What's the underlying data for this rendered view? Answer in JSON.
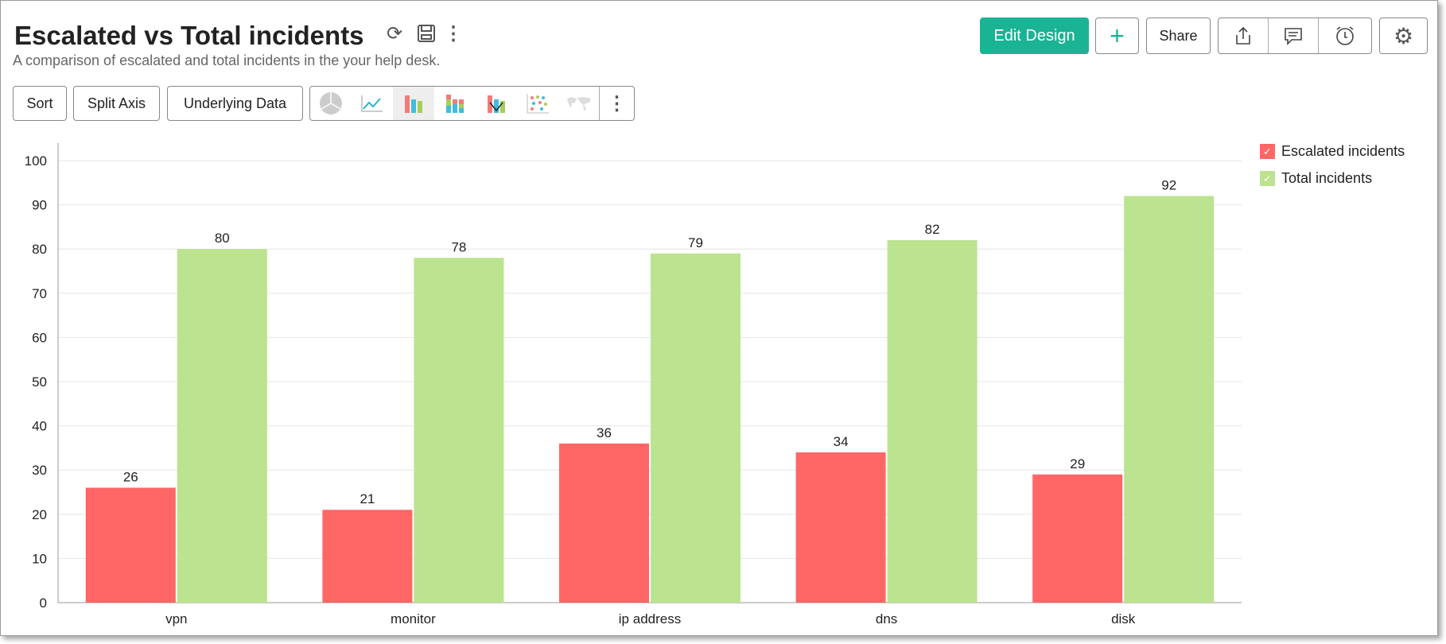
{
  "header": {
    "title": "Escalated vs Total incidents",
    "subtitle": "A comparison of escalated and total incidents in the your help desk."
  },
  "toolbar": {
    "sort": "Sort",
    "split_axis": "Split Axis",
    "underlying_data": "Underlying Data",
    "edit_design": "Edit Design",
    "add": "+",
    "share": "Share"
  },
  "colors": {
    "escalated": "#ff6666",
    "total": "#bce38f",
    "accent": "#1ab394"
  },
  "chart_data": {
    "type": "bar",
    "title": "Escalated vs Total incidents",
    "categories": [
      "vpn",
      "monitor",
      "ip address",
      "dns",
      "disk"
    ],
    "series": [
      {
        "name": "Escalated incidents",
        "values": [
          26,
          21,
          36,
          34,
          29
        ]
      },
      {
        "name": "Total incidents",
        "values": [
          80,
          78,
          79,
          82,
          92
        ]
      }
    ],
    "yticks": [
      0,
      10,
      20,
      30,
      40,
      50,
      60,
      70,
      80,
      90,
      100
    ],
    "ylim": [
      0,
      100
    ],
    "grid": true,
    "legend": "top-right",
    "xlabel": "",
    "ylabel": ""
  }
}
